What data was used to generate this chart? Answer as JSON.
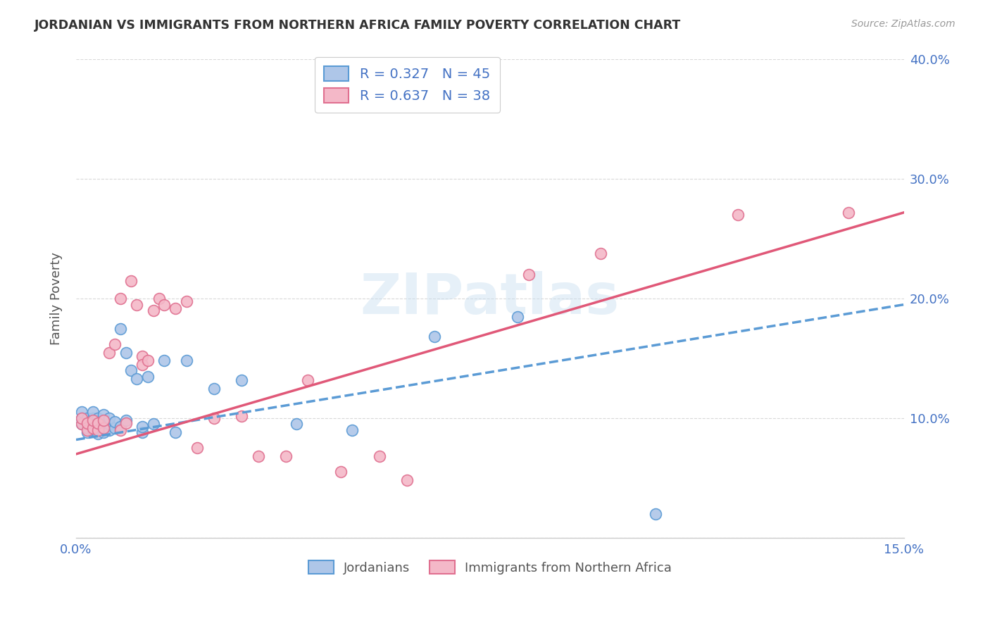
{
  "title": "JORDANIAN VS IMMIGRANTS FROM NORTHERN AFRICA FAMILY POVERTY CORRELATION CHART",
  "source": "Source: ZipAtlas.com",
  "ylabel": "Family Poverty",
  "xlim": [
    0.0,
    0.15
  ],
  "ylim": [
    0.0,
    0.4
  ],
  "xticks": [
    0.0,
    0.025,
    0.05,
    0.075,
    0.1,
    0.125,
    0.15
  ],
  "xtick_labels": [
    "0.0%",
    "",
    "",
    "",
    "",
    "",
    "15.0%"
  ],
  "yticks": [
    0.0,
    0.1,
    0.2,
    0.3,
    0.4
  ],
  "ytick_labels_right": [
    "",
    "10.0%",
    "20.0%",
    "30.0%",
    "40.0%"
  ],
  "background_color": "#ffffff",
  "grid_color": "#d0d0d0",
  "series1_name": "Jordanians",
  "series1_R": "0.327",
  "series1_N": "45",
  "series1_color": "#aec6e8",
  "series1_edge_color": "#5b9bd5",
  "series2_name": "Immigrants from Northern Africa",
  "series2_R": "0.637",
  "series2_N": "38",
  "series2_color": "#f4b8c8",
  "series2_edge_color": "#e07090",
  "trendline1_color": "#5b9bd5",
  "trendline2_color": "#e05878",
  "watermark": "ZIPatlas",
  "series1_x": [
    0.001,
    0.001,
    0.001,
    0.002,
    0.002,
    0.002,
    0.002,
    0.003,
    0.003,
    0.003,
    0.003,
    0.003,
    0.004,
    0.004,
    0.004,
    0.004,
    0.005,
    0.005,
    0.005,
    0.005,
    0.006,
    0.006,
    0.006,
    0.007,
    0.007,
    0.008,
    0.008,
    0.009,
    0.009,
    0.01,
    0.011,
    0.012,
    0.012,
    0.013,
    0.014,
    0.016,
    0.018,
    0.02,
    0.025,
    0.03,
    0.04,
    0.05,
    0.065,
    0.08,
    0.105
  ],
  "series1_y": [
    0.095,
    0.1,
    0.105,
    0.088,
    0.092,
    0.096,
    0.1,
    0.09,
    0.093,
    0.096,
    0.1,
    0.105,
    0.087,
    0.091,
    0.095,
    0.1,
    0.088,
    0.093,
    0.098,
    0.103,
    0.09,
    0.095,
    0.1,
    0.092,
    0.097,
    0.175,
    0.093,
    0.155,
    0.098,
    0.14,
    0.133,
    0.088,
    0.093,
    0.135,
    0.095,
    0.148,
    0.088,
    0.148,
    0.125,
    0.132,
    0.095,
    0.09,
    0.168,
    0.185,
    0.02
  ],
  "series2_x": [
    0.001,
    0.001,
    0.002,
    0.002,
    0.003,
    0.003,
    0.004,
    0.004,
    0.005,
    0.005,
    0.006,
    0.007,
    0.008,
    0.008,
    0.009,
    0.01,
    0.011,
    0.012,
    0.012,
    0.013,
    0.014,
    0.015,
    0.016,
    0.018,
    0.02,
    0.022,
    0.025,
    0.03,
    0.033,
    0.038,
    0.042,
    0.048,
    0.055,
    0.06,
    0.082,
    0.095,
    0.12,
    0.14
  ],
  "series2_y": [
    0.095,
    0.1,
    0.09,
    0.096,
    0.092,
    0.098,
    0.09,
    0.096,
    0.092,
    0.098,
    0.155,
    0.162,
    0.09,
    0.2,
    0.096,
    0.215,
    0.195,
    0.152,
    0.145,
    0.148,
    0.19,
    0.2,
    0.195,
    0.192,
    0.198,
    0.075,
    0.1,
    0.102,
    0.068,
    0.068,
    0.132,
    0.055,
    0.068,
    0.048,
    0.22,
    0.238,
    0.27,
    0.272
  ],
  "trendline1_x0": 0.0,
  "trendline1_y0": 0.082,
  "trendline1_x1": 0.15,
  "trendline1_y1": 0.195,
  "trendline2_x0": 0.0,
  "trendline2_y0": 0.07,
  "trendline2_x1": 0.15,
  "trendline2_y1": 0.272
}
